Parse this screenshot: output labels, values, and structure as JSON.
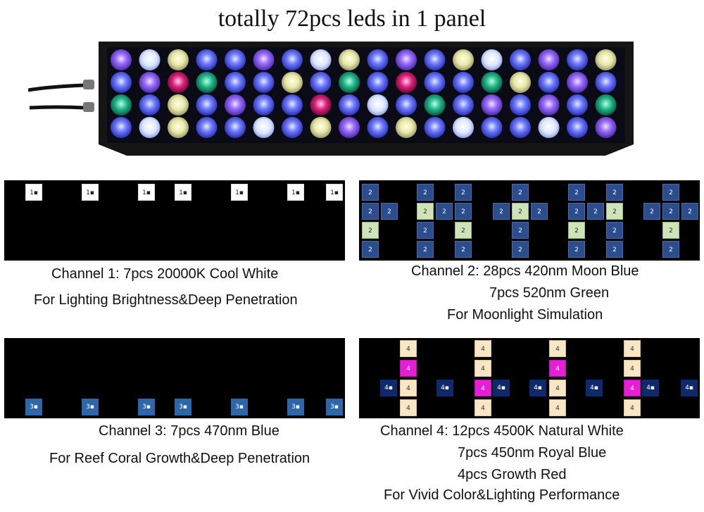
{
  "title": "totally 72pcs leds in 1 panel",
  "product_image": {
    "alt": "LED aquarium light panel with 72 LEDs"
  },
  "channel1": {
    "cell_label": "1▪",
    "line1": "Channel 1: 7pcs 20000K Cool White",
    "line2": "For Lighting Brightness&Deep Penetration"
  },
  "channel2": {
    "cell_label": "2",
    "line1": "Channel 2: 28pcs 420nm Moon Blue",
    "line2": "7pcs 520nm Green",
    "line3": "For Moonlight Simulation"
  },
  "channel3": {
    "cell_label": "3▪",
    "line1": "Channel 3: 7pcs 470nm Blue",
    "line2": "For Reef Coral Growth&Deep Penetration"
  },
  "channel4": {
    "cell_label": "4",
    "blue_label": "4▪",
    "line1": "Channel 4: 12pcs 4500K Natural White",
    "line2": "7pcs 450nm Royal Blue",
    "line3": "4pcs Growth Red",
    "line4": "For Vivid Color&Lighting Performance"
  },
  "colors": {
    "cool_white": "#ffffff",
    "moon_blue": "#2b4d8d",
    "green": "#cfe3b8",
    "blue": "#2d67a9",
    "natural_white": "#f8e6c4",
    "red": "#e61fd6",
    "royal_blue": "#0e2a6b"
  }
}
